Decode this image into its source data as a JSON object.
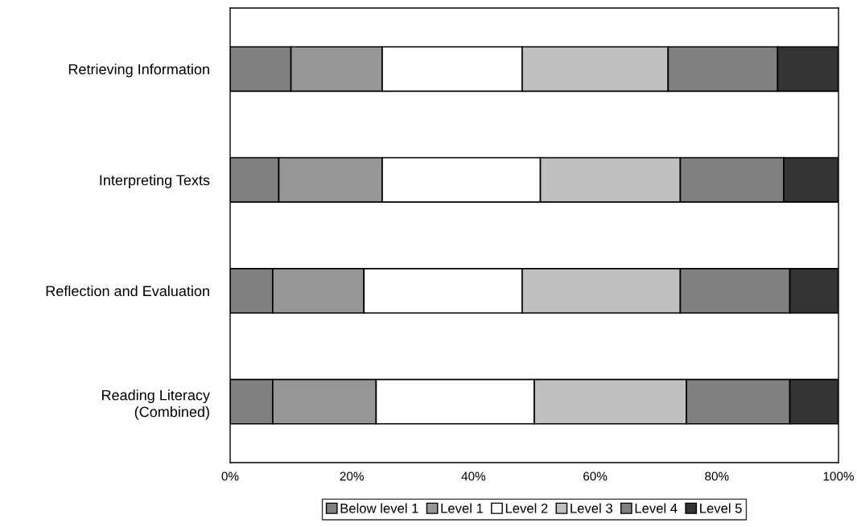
{
  "chart_data": {
    "type": "bar",
    "orientation": "horizontal",
    "stacked": true,
    "categories": [
      "Retrieving Information",
      "Interpreting Texts",
      "Reflection and Evaluation",
      "Reading Literacy\n(Combined)"
    ],
    "series": [
      {
        "name": "Below level 1",
        "color": "#808080",
        "values": [
          10,
          8,
          7,
          7
        ]
      },
      {
        "name": "Level 1",
        "color": "#969696",
        "values": [
          15,
          17,
          15,
          17
        ]
      },
      {
        "name": "Level 2",
        "color": "#ffffff",
        "values": [
          23,
          26,
          26,
          26
        ]
      },
      {
        "name": "Level 3",
        "color": "#c0c0c0",
        "values": [
          24,
          23,
          26,
          25
        ]
      },
      {
        "name": "Level 4",
        "color": "#808080",
        "values": [
          18,
          17,
          18,
          17
        ]
      },
      {
        "name": "Level 5",
        "color": "#333333",
        "values": [
          10,
          9,
          8,
          8
        ]
      }
    ],
    "xlim": [
      0,
      100
    ],
    "xticks": [
      {
        "value": 0,
        "label": "0%"
      },
      {
        "value": 20,
        "label": "20%"
      },
      {
        "value": 40,
        "label": "40%"
      },
      {
        "value": 60,
        "label": "60%"
      },
      {
        "value": 80,
        "label": "80%"
      },
      {
        "value": 100,
        "label": "100%"
      }
    ],
    "grid": false,
    "legend": "bottom"
  }
}
